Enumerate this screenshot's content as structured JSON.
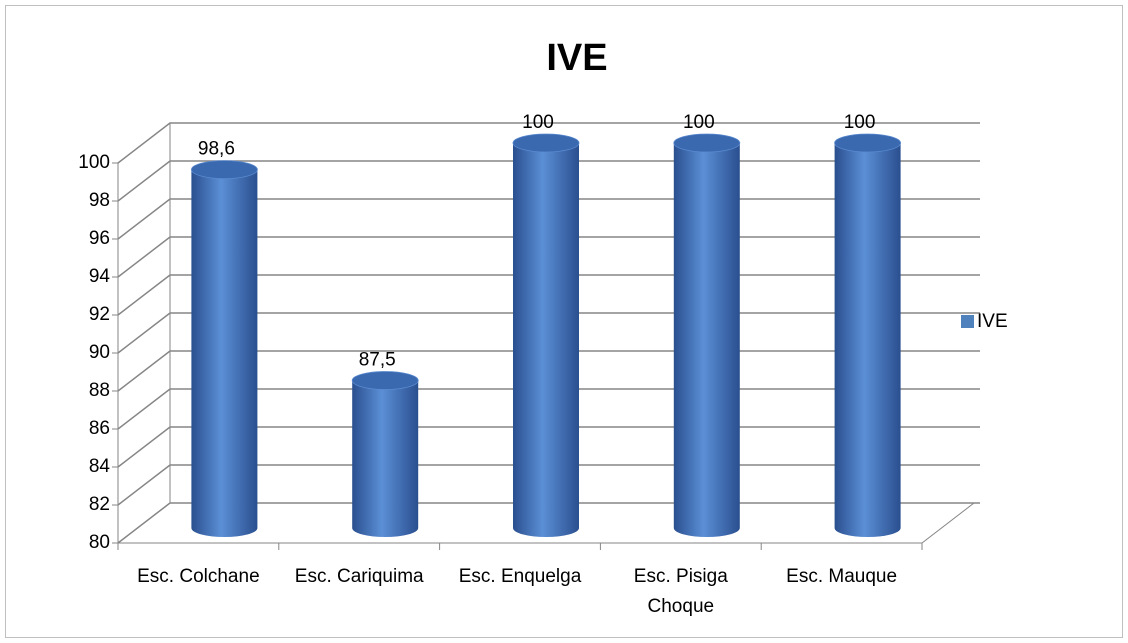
{
  "chart_data": {
    "type": "bar",
    "title": "IVE",
    "categories": [
      "Esc. Colchane",
      "Esc. Cariquima",
      "Esc. Enquelga",
      "Esc. Pisiga Choque",
      "Esc. Mauque"
    ],
    "series": [
      {
        "name": "IVE",
        "color": "#4f81bd",
        "values": [
          98.6,
          87.5,
          100,
          100,
          100
        ],
        "value_labels": [
          "98,6",
          "87,5",
          "100",
          "100",
          "100"
        ]
      }
    ],
    "ylim": [
      80,
      100
    ],
    "yticks": [
      80,
      82,
      84,
      86,
      88,
      90,
      92,
      94,
      96,
      98,
      100
    ],
    "grid": true,
    "legend": "right"
  }
}
